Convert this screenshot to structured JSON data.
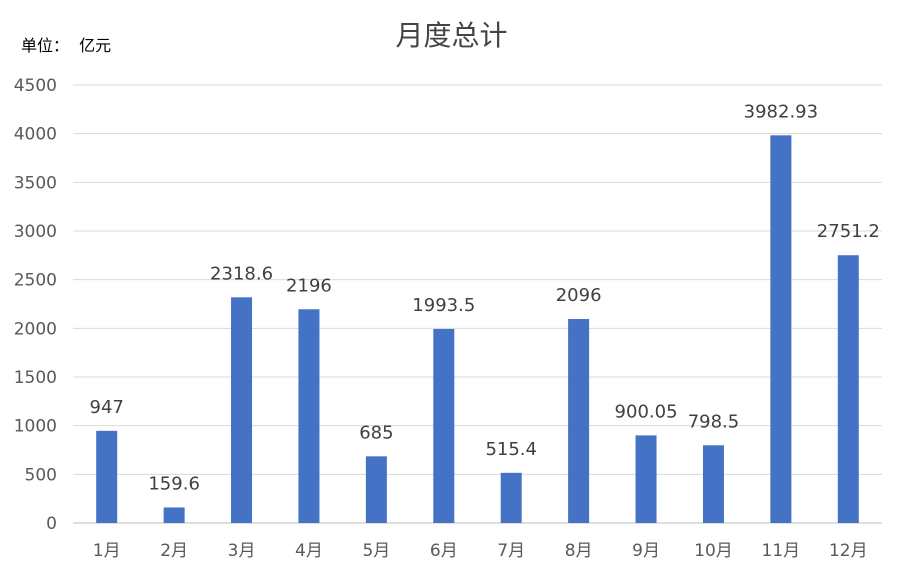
{
  "unit_label": "单位：  亿元",
  "chart_data": {
    "type": "bar",
    "title": "月度总计",
    "categories": [
      "1月",
      "2月",
      "3月",
      "4月",
      "5月",
      "6月",
      "7月",
      "8月",
      "9月",
      "10月",
      "11月",
      "12月"
    ],
    "values": [
      947,
      159.6,
      2318.6,
      2196,
      685,
      1993.5,
      515.4,
      2096,
      900.05,
      798.5,
      3982.93,
      2751.2
    ],
    "data_labels": [
      "947",
      "159.6",
      "2318.6",
      "2196",
      "685",
      "1993.5",
      "515.4",
      "2096",
      "900.05",
      "798.5",
      "3982.93",
      "2751.2"
    ],
    "ylim": [
      0,
      4500
    ],
    "yticks": [
      "0",
      "500",
      "1000",
      "1500",
      "2000",
      "2500",
      "3000",
      "3500",
      "4000",
      "4500"
    ],
    "grid": true,
    "legend": "none",
    "bar_color": "#4472c4"
  }
}
